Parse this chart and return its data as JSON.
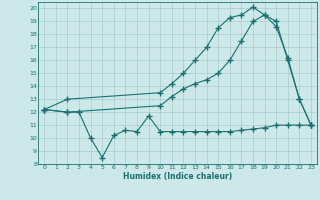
{
  "xlabel": "Humidex (Indice chaleur)",
  "bg_color": "#cce8e8",
  "grid_color": "#aacccc",
  "line_color": "#1a7070",
  "xlim": [
    -0.5,
    23.5
  ],
  "ylim": [
    8,
    20.5
  ],
  "xticks": [
    0,
    1,
    2,
    3,
    4,
    5,
    6,
    7,
    8,
    9,
    10,
    11,
    12,
    13,
    14,
    15,
    16,
    17,
    18,
    19,
    20,
    21,
    22,
    23
  ],
  "yticks": [
    8,
    9,
    10,
    11,
    12,
    13,
    14,
    15,
    16,
    17,
    18,
    19,
    20
  ],
  "line1_x": [
    0,
    2,
    10,
    11,
    12,
    13,
    14,
    15,
    16,
    17,
    18,
    19,
    20,
    21,
    22,
    23
  ],
  "line1_y": [
    12.2,
    13.0,
    13.5,
    14.2,
    15.0,
    16.0,
    17.0,
    18.5,
    19.3,
    19.5,
    20.1,
    19.5,
    18.6,
    16.2,
    13.0,
    11.0
  ],
  "line2_x": [
    0,
    2,
    10,
    11,
    12,
    13,
    14,
    15,
    16,
    17,
    18,
    19,
    20,
    21,
    22,
    23
  ],
  "line2_y": [
    12.2,
    12.0,
    12.5,
    13.2,
    13.8,
    14.2,
    14.5,
    15.0,
    16.0,
    17.5,
    19.0,
    19.5,
    19.0,
    16.0,
    13.0,
    11.0
  ],
  "line3_x": [
    0,
    2,
    3,
    4,
    5,
    6,
    7,
    8,
    9,
    10,
    11,
    12,
    13,
    14,
    15,
    16,
    17,
    18,
    19,
    20,
    21,
    22,
    23
  ],
  "line3_y": [
    12.2,
    12.0,
    12.0,
    10.0,
    8.5,
    10.2,
    10.6,
    10.5,
    11.7,
    10.5,
    10.5,
    10.5,
    10.5,
    10.5,
    10.5,
    10.5,
    10.6,
    10.7,
    10.8,
    11.0,
    11.0,
    11.0,
    11.0
  ]
}
